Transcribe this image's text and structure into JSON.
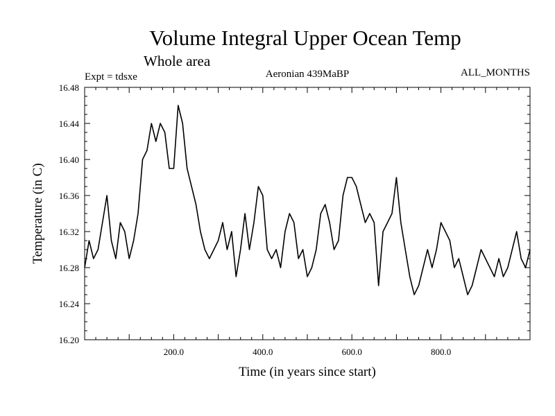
{
  "chart_data": {
    "type": "line",
    "title": "Volume Integral Upper Ocean Temp",
    "subtitle": "Whole area",
    "header_left": "Expt = tdsxe",
    "header_center": "Aeronian 439MaBP",
    "header_right": "ALL_MONTHS",
    "xlabel": "Time (in years since start)",
    "ylabel": "Temperature (in C)",
    "xlim": [
      0,
      1000
    ],
    "ylim": [
      16.2,
      16.48
    ],
    "x_ticks": [
      200,
      400,
      600,
      800
    ],
    "x_tick_labels": [
      "200.0",
      "400.0",
      "600.0",
      "800.0"
    ],
    "y_ticks": [
      16.2,
      16.24,
      16.28,
      16.32,
      16.36,
      16.4,
      16.44,
      16.48
    ],
    "y_tick_labels": [
      "16.20",
      "16.24",
      "16.28",
      "16.32",
      "16.36",
      "16.40",
      "16.44",
      "16.48"
    ],
    "grid": false,
    "series": [
      {
        "name": "Temperature",
        "color": "#000000",
        "x": [
          0,
          10,
          20,
          30,
          40,
          50,
          60,
          70,
          80,
          90,
          100,
          110,
          120,
          130,
          140,
          150,
          160,
          170,
          180,
          190,
          200,
          210,
          220,
          230,
          240,
          250,
          260,
          270,
          280,
          290,
          300,
          310,
          320,
          330,
          340,
          350,
          360,
          370,
          380,
          390,
          400,
          410,
          420,
          430,
          440,
          450,
          460,
          470,
          480,
          490,
          500,
          510,
          520,
          530,
          540,
          550,
          560,
          570,
          580,
          590,
          600,
          610,
          620,
          630,
          640,
          650,
          660,
          670,
          680,
          690,
          700,
          710,
          720,
          730,
          740,
          750,
          760,
          770,
          780,
          790,
          800,
          810,
          820,
          830,
          840,
          850,
          860,
          870,
          880,
          890,
          900,
          910,
          920,
          930,
          940,
          950,
          960,
          970,
          980,
          990,
          1000
        ],
        "values": [
          16.28,
          16.31,
          16.29,
          16.3,
          16.33,
          16.36,
          16.31,
          16.29,
          16.33,
          16.32,
          16.29,
          16.31,
          16.34,
          16.4,
          16.41,
          16.44,
          16.42,
          16.44,
          16.43,
          16.39,
          16.39,
          16.46,
          16.44,
          16.39,
          16.37,
          16.35,
          16.32,
          16.3,
          16.29,
          16.3,
          16.31,
          16.33,
          16.3,
          16.32,
          16.27,
          16.3,
          16.34,
          16.3,
          16.33,
          16.37,
          16.36,
          16.3,
          16.29,
          16.3,
          16.28,
          16.32,
          16.34,
          16.33,
          16.29,
          16.3,
          16.27,
          16.28,
          16.3,
          16.34,
          16.35,
          16.33,
          16.3,
          16.31,
          16.36,
          16.38,
          16.38,
          16.37,
          16.35,
          16.33,
          16.34,
          16.33,
          16.26,
          16.32,
          16.33,
          16.34,
          16.38,
          16.33,
          16.3,
          16.27,
          16.25,
          16.26,
          16.28,
          16.3,
          16.28,
          16.3,
          16.33,
          16.32,
          16.31,
          16.28,
          16.29,
          16.27,
          16.25,
          16.26,
          16.28,
          16.3,
          16.29,
          16.28,
          16.27,
          16.29,
          16.27,
          16.28,
          16.3,
          16.32,
          16.29,
          16.28,
          16.3
        ]
      }
    ]
  }
}
